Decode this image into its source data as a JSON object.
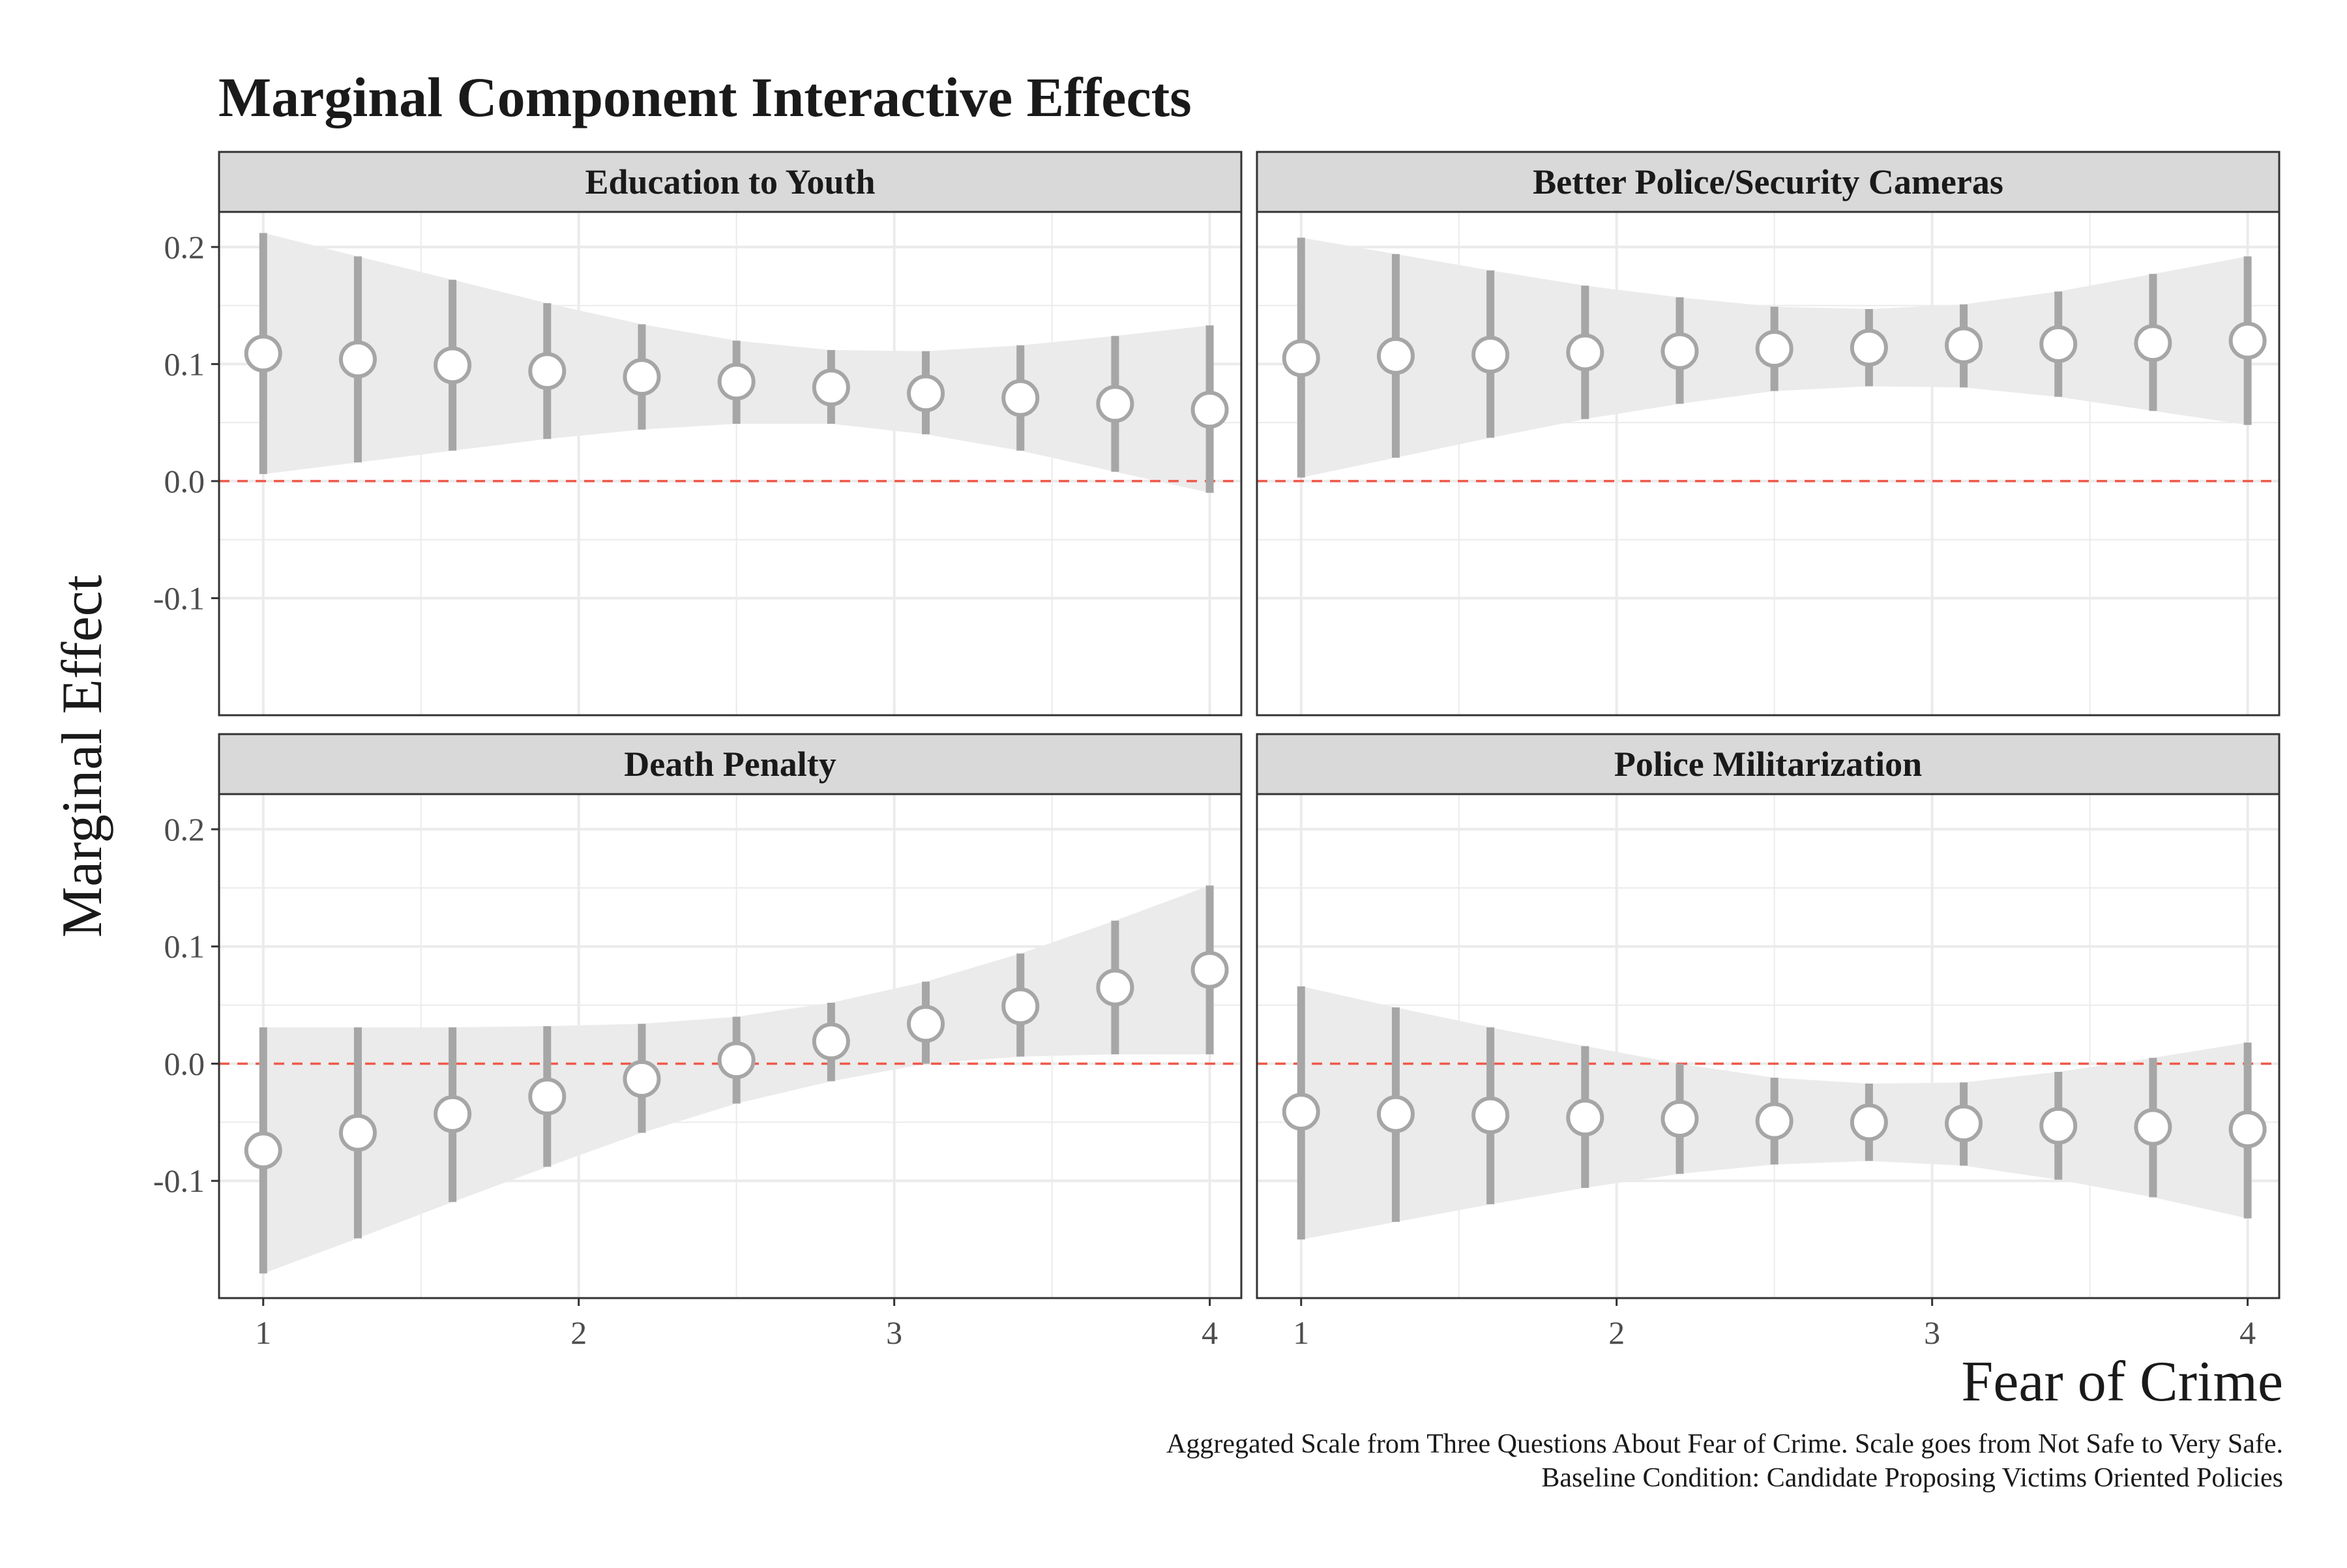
{
  "title": "Marginal Component Interactive Effects",
  "ylabel": "Marginal Effect",
  "xlabel": "Fear of Crime",
  "caption_lines": [
    "Aggregated Scale from Three Questions About Fear of Crime. Scale goes from Not Safe to Very Safe.",
    "Baseline Condition: Candidate Proposing Victims Oriented Policies"
  ],
  "colors": {
    "ribbon": "#ebebeb",
    "errorbar": "#a6a6a6",
    "point_stroke": "#a6a6a6",
    "point_fill": "#ffffff",
    "reference_line": "#f0594b",
    "strip_bg": "#d9d9d9",
    "grid": "#ebebeb",
    "panel_border": "#333333"
  },
  "chart_data": {
    "type": "scatter",
    "facets": 4,
    "layout": "2x2",
    "xlim": [
      0.86,
      4.1
    ],
    "ylim": [
      -0.2,
      0.23
    ],
    "x_ticks": [
      1,
      2,
      3,
      4
    ],
    "x_tick_labels": [
      "1",
      "2",
      "3",
      "4"
    ],
    "y_ticks": [
      -0.1,
      0.0,
      0.1,
      0.2
    ],
    "y_tick_labels": [
      "-0.1",
      "0.0",
      "0.1",
      "0.2"
    ],
    "reference_line_y": 0,
    "x": [
      1.0,
      1.3,
      1.6,
      1.9,
      2.2,
      2.5,
      2.8,
      3.1,
      3.4,
      3.7,
      4.0
    ],
    "panels": [
      {
        "name": "Education to Youth",
        "estimate": [
          0.109,
          0.104,
          0.099,
          0.094,
          0.089,
          0.085,
          0.08,
          0.075,
          0.071,
          0.066,
          0.061
        ],
        "lower": [
          0.006,
          0.016,
          0.026,
          0.036,
          0.044,
          0.049,
          0.049,
          0.04,
          0.026,
          0.008,
          -0.01
        ],
        "upper": [
          0.212,
          0.192,
          0.172,
          0.152,
          0.134,
          0.12,
          0.112,
          0.111,
          0.116,
          0.124,
          0.133
        ]
      },
      {
        "name": "Better Police/Security Cameras",
        "estimate": [
          0.105,
          0.107,
          0.108,
          0.11,
          0.111,
          0.113,
          0.114,
          0.116,
          0.117,
          0.118,
          0.12
        ],
        "lower": [
          0.003,
          0.02,
          0.037,
          0.053,
          0.066,
          0.077,
          0.081,
          0.08,
          0.072,
          0.06,
          0.048
        ],
        "upper": [
          0.208,
          0.194,
          0.18,
          0.167,
          0.157,
          0.149,
          0.147,
          0.151,
          0.162,
          0.177,
          0.192
        ]
      },
      {
        "name": "Death Penalty",
        "estimate": [
          -0.074,
          -0.059,
          -0.043,
          -0.028,
          -0.013,
          0.003,
          0.019,
          0.034,
          0.049,
          0.065,
          0.08
        ],
        "lower": [
          -0.179,
          -0.149,
          -0.118,
          -0.088,
          -0.059,
          -0.034,
          -0.015,
          0.0,
          0.006,
          0.008,
          0.008
        ],
        "upper": [
          0.031,
          0.031,
          0.031,
          0.032,
          0.034,
          0.04,
          0.052,
          0.07,
          0.094,
          0.122,
          0.152
        ]
      },
      {
        "name": "Police Militarization",
        "estimate": [
          -0.041,
          -0.043,
          -0.044,
          -0.046,
          -0.047,
          -0.049,
          -0.05,
          -0.051,
          -0.053,
          -0.054,
          -0.056
        ],
        "lower": [
          -0.15,
          -0.135,
          -0.12,
          -0.106,
          -0.094,
          -0.086,
          -0.083,
          -0.087,
          -0.099,
          -0.114,
          -0.132
        ],
        "upper": [
          0.066,
          0.048,
          0.031,
          0.015,
          0.0,
          -0.012,
          -0.017,
          -0.016,
          -0.007,
          0.005,
          0.018
        ]
      }
    ]
  }
}
